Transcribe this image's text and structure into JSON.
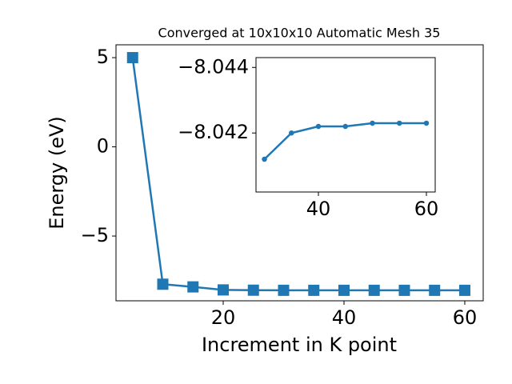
{
  "chart_data": [
    {
      "type": "line",
      "title": "Converged at 10x10x10 Automatic Mesh 35",
      "xlabel": "Increment in K point",
      "ylabel": "Energy (eV)",
      "x": [
        5,
        10,
        15,
        20,
        25,
        30,
        35,
        40,
        45,
        50,
        55,
        60
      ],
      "values": [
        5.0,
        -7.7,
        -7.85,
        -8.02,
        -8.035,
        -8.0412,
        -8.042,
        -8.0422,
        -8.0422,
        -8.0423,
        -8.0423,
        -8.0423
      ],
      "color": "#1f77b4",
      "marker": "square",
      "xlim": [
        2.25,
        63.05
      ],
      "xticks": [
        20,
        40,
        60
      ],
      "ylim": [
        -8.63,
        5.72
      ],
      "yticks": [
        {
          "value": -5,
          "label": "−5"
        },
        0,
        5
      ]
    },
    {
      "type": "line",
      "x": [
        30,
        35,
        40,
        45,
        50,
        55,
        60
      ],
      "values": [
        -8.0412,
        -8.042,
        -8.0422,
        -8.0422,
        -8.0423,
        -8.0423,
        -8.0423
      ],
      "color": "#1f77b4",
      "marker": "circle",
      "xlim": [
        28.44,
        61.63
      ],
      "xticks": [
        40,
        60
      ],
      "ylim": [
        -8.0402,
        -8.0443
      ],
      "yticks": [
        {
          "value": -8.044,
          "label": "−8.044"
        },
        {
          "value": -8.042,
          "label": "−8.042"
        }
      ]
    }
  ]
}
